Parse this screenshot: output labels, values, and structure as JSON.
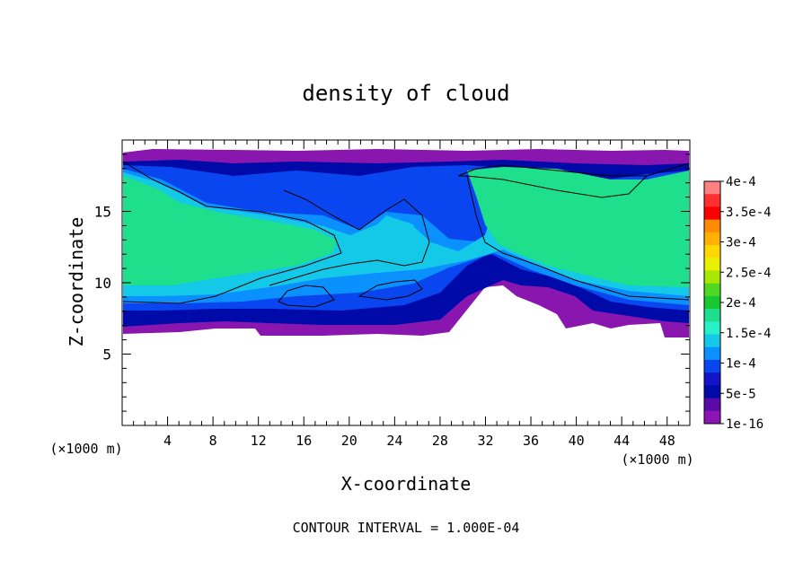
{
  "chart_data": {
    "type": "heatmap",
    "title": "density of cloud",
    "xlabel": "X-coordinate",
    "ylabel": "Z-coordinate",
    "x_unit_label": "(×1000 m)",
    "z_unit_label": "(×1000 m)",
    "xlim": [
      0,
      50
    ],
    "ylim": [
      0,
      20
    ],
    "x_ticks": [
      4,
      8,
      12,
      16,
      20,
      24,
      28,
      32,
      36,
      40,
      44,
      48
    ],
    "y_ticks": [
      5,
      10,
      15
    ],
    "footer": "CONTOUR INTERVAL = 1.000E-04",
    "colorbar": {
      "labels": [
        "4e-4",
        "3.5e-4",
        "3e-4",
        "2.5e-4",
        "2e-4",
        "1.5e-4",
        "1e-4",
        "5e-5",
        "1e-16"
      ],
      "colors": [
        "#ff8080",
        "#ff3030",
        "#ff0000",
        "#ff8c00",
        "#ffb000",
        "#ffd800",
        "#e8f000",
        "#a8e800",
        "#50d820",
        "#18c830",
        "#1ee08c",
        "#28f0c8",
        "#14c8e8",
        "#0a90ff",
        "#0a46f0",
        "#1414c8",
        "#000aa8",
        "#5a0aa8",
        "#8c14b4"
      ]
    },
    "colors": {
      "band_top": "#8a16b0",
      "high_cloud": "#1ee08c",
      "mid": "#0a46f0",
      "dark": "#000aa8",
      "cyan": "#14c8e8",
      "light_blue": "#0a90ff"
    }
  }
}
